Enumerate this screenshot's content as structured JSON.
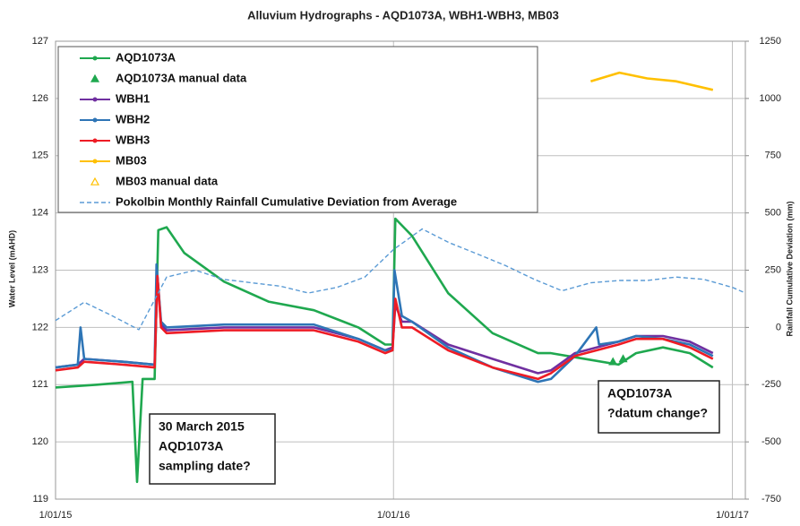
{
  "chart_data": {
    "type": "line",
    "title": "Alluvium Hydrographs - AQD1073A, WBH1-WBH3, MB03",
    "y_label": "Water Level (mAHD)",
    "y2_label": "Rainfall Cumulative Deviation (mm)",
    "xlim": [
      "1/01/15",
      "15/01/17"
    ],
    "xticks": [
      "1/01/15",
      "1/01/16",
      "1/01/17"
    ],
    "ylim": [
      119,
      127
    ],
    "yticks": [
      119,
      120,
      121,
      122,
      123,
      124,
      125,
      126,
      127
    ],
    "y2lim": [
      -750,
      1250
    ],
    "y2ticks": [
      -750,
      -500,
      -250,
      0,
      250,
      500,
      750,
      1000,
      1250
    ],
    "grid": true,
    "legend": "upper left",
    "series": [
      {
        "name": "AQD1073A",
        "color": "#1fa84f",
        "marker": "line",
        "x": [
          "1/01/15",
          "15/02/15",
          "25/03/15",
          "30/03/15",
          "5/04/15",
          "18/04/15",
          "22/04/15",
          "1/05/15",
          "20/05/15",
          "2/07/15",
          "19/08/15",
          "7/10/15",
          "24/11/15",
          "23/12/15",
          "31/12/15",
          "3/01/16",
          "21/01/16",
          "29/02/16",
          "17/04/16",
          "5/06/16",
          "19/06/16",
          "31/08/16",
          "19/09/16",
          "18/10/16",
          "16/11/16",
          "11/12/16"
        ],
        "values": [
          120.95,
          121.0,
          121.05,
          119.3,
          121.1,
          121.1,
          123.7,
          123.75,
          123.3,
          122.8,
          122.45,
          122.3,
          122.0,
          121.7,
          121.7,
          123.9,
          123.6,
          122.6,
          121.9,
          121.55,
          121.55,
          121.35,
          121.55,
          121.65,
          121.55,
          121.3
        ]
      },
      {
        "name": "AQD1073A manual data",
        "color": "#1fa84f",
        "marker": "triangle",
        "x": [
          "25/08/16",
          "5/09/16"
        ],
        "values": [
          121.4,
          121.45
        ]
      },
      {
        "name": "WBH1",
        "color": "#7030a0",
        "marker": "line",
        "x": [
          "1/01/15",
          "25/01/15",
          "1/02/15",
          "15/03/15",
          "18/04/15",
          "21/04/15",
          "25/04/15",
          "1/05/15",
          "2/07/15",
          "19/08/15",
          "7/10/15",
          "24/11/15",
          "23/12/15",
          "31/12/15",
          "3/01/16",
          "10/01/16",
          "21/01/16",
          "29/02/16",
          "17/04/16",
          "5/06/16",
          "19/06/16",
          "15/07/16",
          "31/08/16",
          "19/09/16",
          "18/10/16",
          "16/11/16",
          "11/12/16"
        ],
        "values": [
          121.3,
          121.35,
          121.45,
          121.4,
          121.35,
          122.9,
          122.05,
          121.95,
          122.0,
          122.0,
          122.0,
          121.8,
          121.6,
          121.65,
          122.4,
          122.1,
          122.1,
          121.7,
          121.45,
          121.2,
          121.25,
          121.55,
          121.75,
          121.85,
          121.85,
          121.75,
          121.55
        ]
      },
      {
        "name": "WBH2",
        "color": "#2e75b6",
        "marker": "line",
        "x": [
          "1/01/15",
          "25/01/15",
          "28/01/15",
          "1/02/15",
          "15/03/15",
          "18/04/15",
          "20/04/15",
          "25/04/15",
          "1/05/15",
          "2/07/15",
          "19/08/15",
          "7/10/15",
          "24/11/15",
          "23/12/15",
          "31/12/15",
          "2/01/16",
          "10/01/16",
          "21/01/16",
          "29/02/16",
          "17/04/16",
          "5/06/16",
          "19/06/16",
          "15/07/16",
          "7/08/16",
          "10/08/16",
          "31/08/16",
          "19/09/16",
          "18/10/16",
          "16/11/16",
          "11/12/16"
        ],
        "values": [
          121.3,
          121.35,
          122.0,
          121.45,
          121.4,
          121.35,
          123.1,
          122.1,
          122.0,
          122.05,
          122.05,
          122.05,
          121.8,
          121.6,
          121.6,
          123.0,
          122.2,
          122.1,
          121.65,
          121.3,
          121.05,
          121.1,
          121.5,
          122.0,
          121.7,
          121.75,
          121.85,
          121.8,
          121.7,
          121.5
        ]
      },
      {
        "name": "WBH3",
        "color": "#ee1c25",
        "marker": "line",
        "x": [
          "1/01/15",
          "25/01/15",
          "1/02/15",
          "15/03/15",
          "18/04/15",
          "21/04/15",
          "25/04/15",
          "1/05/15",
          "2/07/15",
          "19/08/15",
          "7/10/15",
          "24/11/15",
          "23/12/15",
          "31/12/15",
          "3/01/16",
          "10/01/16",
          "21/01/16",
          "29/02/16",
          "17/04/16",
          "5/06/16",
          "19/06/16",
          "15/07/16",
          "31/08/16",
          "19/09/16",
          "18/10/16",
          "16/11/16",
          "11/12/16"
        ],
        "values": [
          121.25,
          121.3,
          121.4,
          121.35,
          121.3,
          122.9,
          122.0,
          121.9,
          121.95,
          121.95,
          121.95,
          121.75,
          121.55,
          121.6,
          122.5,
          122.0,
          122.0,
          121.6,
          121.3,
          121.1,
          121.2,
          121.5,
          121.7,
          121.8,
          121.8,
          121.65,
          121.45
        ]
      },
      {
        "name": "MB03",
        "color": "#ffc000",
        "marker": "line",
        "x": [
          "1/08/16",
          "1/09/16",
          "1/10/16",
          "1/11/16",
          "11/12/16"
        ],
        "values": [
          126.3,
          126.45,
          126.35,
          126.3,
          126.15
        ]
      },
      {
        "name": "MB03 manual data",
        "color": "#ffc000",
        "marker": "open-triangle",
        "x": [],
        "values": []
      },
      {
        "name": "Pokolbin Monthly Rainfall Cumulative Deviation from Average",
        "color": "#5b9bd5",
        "marker": "dash",
        "axis": "y2",
        "x": [
          "1/01/15",
          "1/02/15",
          "1/03/15",
          "1/04/15",
          "1/05/15",
          "1/06/15",
          "1/07/15",
          "1/08/15",
          "1/09/15",
          "1/10/15",
          "1/11/15",
          "1/12/15",
          "1/01/16",
          "1/02/16",
          "1/03/16",
          "1/04/16",
          "1/05/16",
          "1/06/16",
          "1/07/16",
          "1/08/16",
          "1/09/16",
          "1/10/16",
          "1/11/16",
          "1/12/16",
          "1/01/17",
          "15/01/17"
        ],
        "values": [
          30,
          110,
          55,
          -10,
          220,
          250,
          210,
          195,
          180,
          150,
          175,
          220,
          340,
          430,
          370,
          320,
          270,
          210,
          160,
          195,
          205,
          205,
          220,
          210,
          175,
          150
        ]
      }
    ],
    "annotations": [
      {
        "lines": [
          "30 March 2015",
          "AQD1073A",
          "sampling date?"
        ]
      },
      {
        "lines": [
          "AQD1073A",
          "?datum change?"
        ]
      }
    ]
  }
}
